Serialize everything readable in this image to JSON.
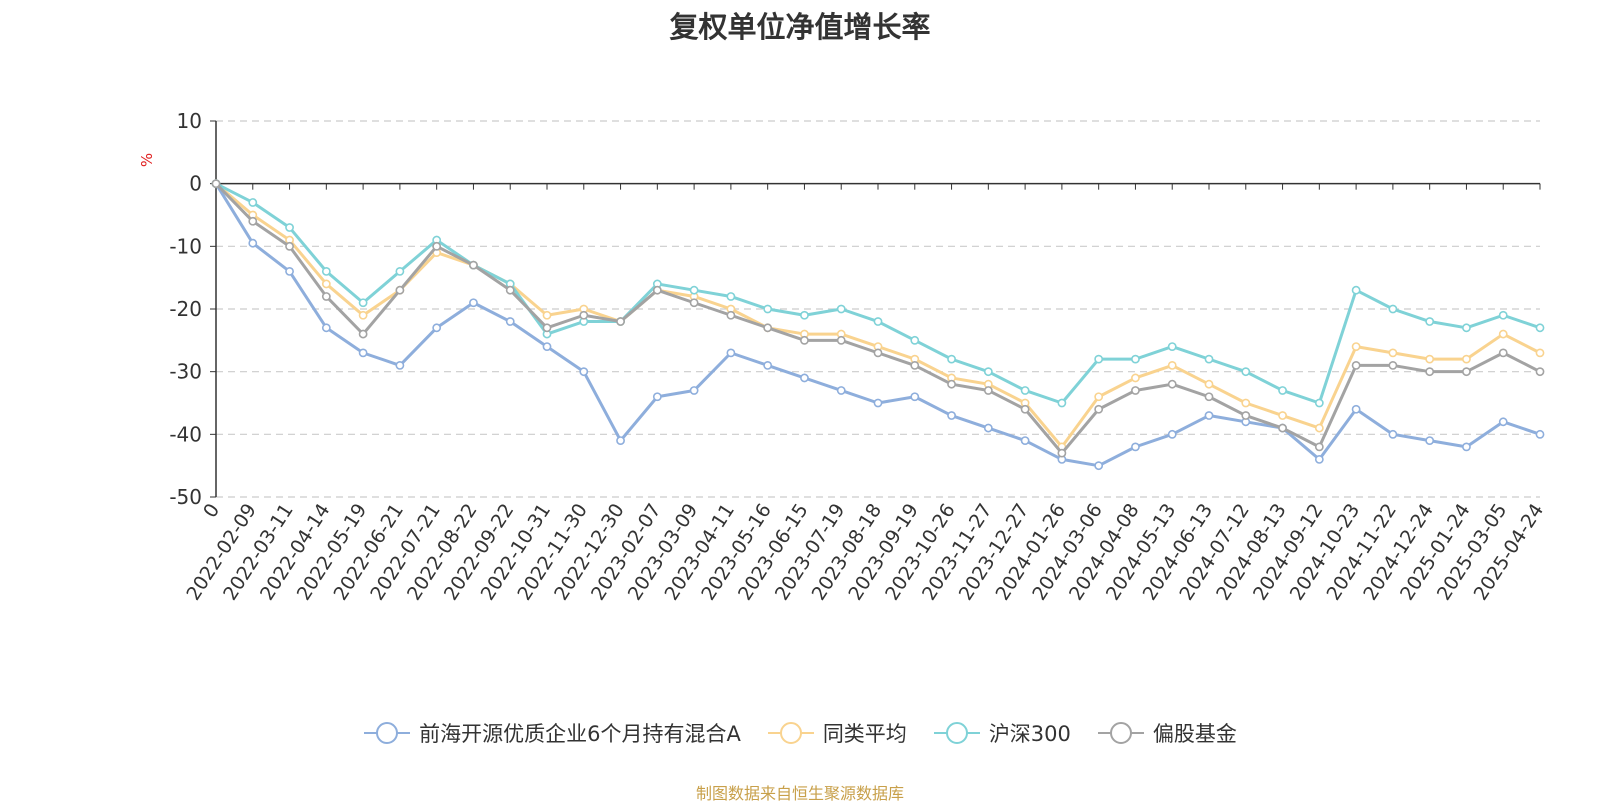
{
  "chart_data": {
    "type": "line",
    "title": "复权单位净值增长率",
    "ylabel": "%",
    "ylim": [
      -50,
      10
    ],
    "yticks": [
      10,
      0,
      -10,
      -20,
      -30,
      -40,
      -50
    ],
    "x_tick_labels": [
      "0",
      "2022-02-09",
      "2022-03-11",
      "2022-04-14",
      "2022-05-19",
      "2022-06-21",
      "2022-07-21",
      "2022-08-22",
      "2022-09-22",
      "2022-10-31",
      "2022-11-30",
      "2022-12-30",
      "2023-02-07",
      "2023-03-09",
      "2023-04-11",
      "2023-05-16",
      "2023-06-15",
      "2023-07-19",
      "2023-08-18",
      "2023-09-19",
      "2023-10-26",
      "2023-11-27",
      "2023-12-27",
      "2024-01-26",
      "2024-03-06",
      "2024-04-08",
      "2024-05-13",
      "2024-06-13",
      "2024-07-12",
      "2024-08-13",
      "2024-09-12",
      "2024-10-23",
      "2024-11-22",
      "2024-12-24",
      "2025-01-24",
      "2025-03-05",
      "2025-04-24"
    ],
    "grid": "horizontal dashed",
    "legend_position": "bottom",
    "series": [
      {
        "name": "前海开源优质企业6个月持有混合A",
        "color": "#8eaedc",
        "values": [
          0,
          -9.5,
          -14,
          -23,
          -27,
          -29,
          -23,
          -19,
          -22,
          -26,
          -30,
          -41,
          -34,
          -33,
          -27,
          -29,
          -31,
          -33,
          -35,
          -34,
          -37,
          -39,
          -41,
          -44,
          -45,
          -42,
          -40,
          -37,
          -38,
          -39,
          -44,
          -36,
          -40,
          -41,
          -42,
          -38,
          -40
        ]
      },
      {
        "name": "同类平均",
        "color": "#f9d38f",
        "values": [
          0,
          -5,
          -9,
          -16,
          -21,
          -17,
          -11,
          -13,
          -16,
          -21,
          -20,
          -22,
          -17,
          -18,
          -20,
          -23,
          -24,
          -24,
          -26,
          -28,
          -31,
          -32,
          -35,
          -42,
          -34,
          -31,
          -29,
          -32,
          -35,
          -37,
          -39,
          -26,
          -27,
          -28,
          -28,
          -24,
          -27
        ]
      },
      {
        "name": "沪深300",
        "color": "#7fd2d7",
        "values": [
          0,
          -3,
          -7,
          -14,
          -19,
          -14,
          -9,
          -13,
          -16,
          -24,
          -22,
          -22,
          -16,
          -17,
          -18,
          -20,
          -21,
          -20,
          -22,
          -25,
          -28,
          -30,
          -33,
          -35,
          -28,
          -28,
          -26,
          -28,
          -30,
          -33,
          -35,
          -17,
          -20,
          -22,
          -23,
          -21,
          -23
        ]
      },
      {
        "name": "偏股基金",
        "color": "#a3a3a3",
        "values": [
          0,
          -6,
          -10,
          -18,
          -24,
          -17,
          -10,
          -13,
          -17,
          -23,
          -21,
          -22,
          -17,
          -19,
          -21,
          -23,
          -25,
          -25,
          -27,
          -29,
          -32,
          -33,
          -36,
          -43,
          -36,
          -33,
          -32,
          -34,
          -37,
          -39,
          -42,
          -29,
          -29,
          -30,
          -30,
          -27,
          -30
        ]
      }
    ]
  },
  "source_note": "制图数据来自恒生聚源数据库"
}
